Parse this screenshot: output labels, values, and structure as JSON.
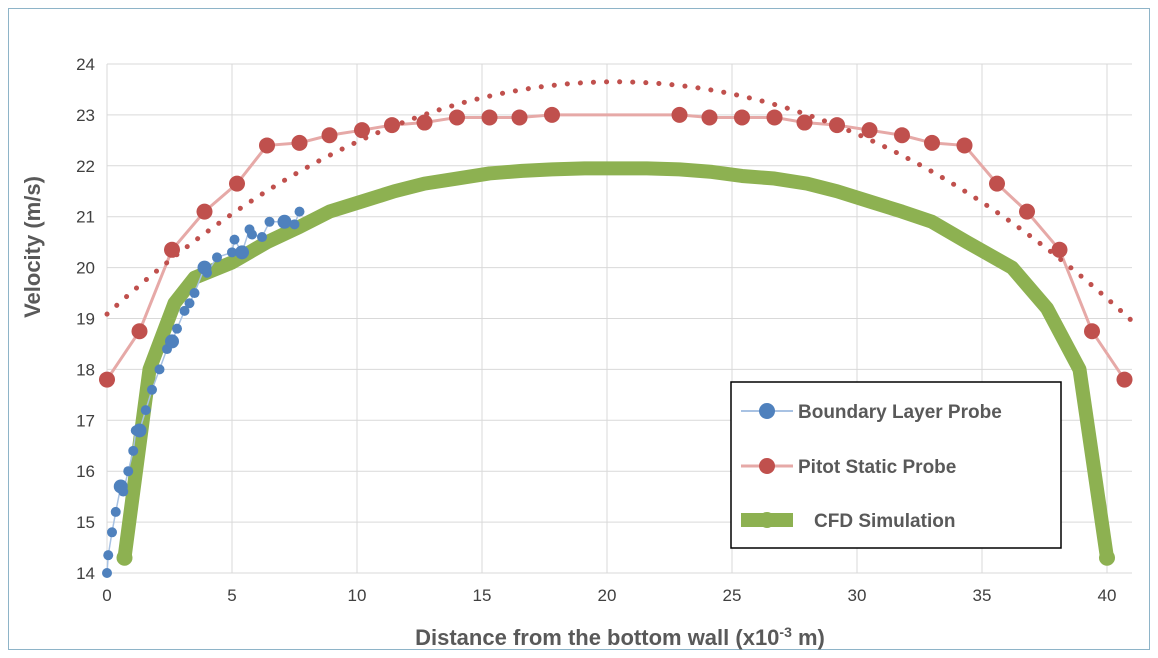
{
  "chart_data": {
    "type": "scatter",
    "xlabel": "Distance from the bottom wall (x10",
    "xlabel_sup": "-3",
    "xlabel_suffix": " m)",
    "ylabel": "Velocity (m/s)",
    "xlim": [
      0,
      41
    ],
    "ylim": [
      14,
      24
    ],
    "xticks": [
      0,
      5,
      10,
      15,
      20,
      25,
      30,
      35,
      40
    ],
    "yticks": [
      14,
      15,
      16,
      17,
      18,
      19,
      20,
      21,
      22,
      23,
      24
    ],
    "grid": true,
    "legend_position": "bottom-right",
    "colors": {
      "bl": "#4f81bd",
      "bl_line": "#a8c2e3",
      "pitot": "#c0504d",
      "pitot_line": "#e6a9a7",
      "cfd": "#8db151",
      "grid": "#d9d9d9",
      "frame": "#8eb4c8"
    },
    "series": [
      {
        "name": "Boundary Layer Probe",
        "key": "bl",
        "x": [
          0.0,
          0.05,
          0.2,
          0.35,
          0.55,
          0.65,
          0.85,
          1.05,
          1.15,
          1.3,
          1.55,
          1.8,
          2.1,
          2.4,
          2.6,
          2.8,
          3.1,
          3.3,
          3.5,
          3.9,
          4.0,
          4.4,
          5.0,
          5.1,
          5.4,
          5.7,
          5.8,
          6.2,
          6.5,
          7.1,
          7.5,
          7.7
        ],
        "y": [
          14.0,
          14.35,
          14.8,
          15.2,
          15.7,
          15.6,
          16.0,
          16.4,
          16.8,
          16.8,
          17.2,
          17.6,
          18.0,
          18.4,
          18.55,
          18.8,
          19.15,
          19.3,
          19.5,
          20.0,
          19.9,
          20.2,
          20.3,
          20.55,
          20.3,
          20.75,
          20.65,
          20.6,
          20.9,
          20.9,
          20.85,
          21.1
        ]
      },
      {
        "name": "Pitot Static Probe",
        "key": "pitot",
        "x": [
          0.0,
          1.3,
          2.6,
          3.9,
          5.2,
          6.4,
          7.7,
          8.9,
          10.2,
          11.4,
          12.7,
          14.0,
          15.3,
          16.5,
          17.8,
          22.9,
          24.1,
          25.4,
          26.7,
          27.9,
          29.2,
          30.5,
          31.8,
          33.0,
          34.3,
          35.6,
          36.8,
          38.1,
          39.4,
          40.7
        ],
        "y": [
          17.8,
          18.75,
          20.35,
          21.1,
          21.65,
          22.4,
          22.45,
          22.6,
          22.7,
          22.8,
          22.85,
          22.95,
          22.95,
          22.95,
          23.0,
          23.0,
          22.95,
          22.95,
          22.95,
          22.85,
          22.8,
          22.7,
          22.6,
          22.45,
          22.4,
          21.65,
          21.1,
          20.35,
          18.75,
          17.8
        ]
      },
      {
        "name": "CFD Simulation",
        "key": "cfd",
        "x": [
          0.7,
          1.7,
          2.7,
          3.5,
          5.0,
          6.4,
          7.7,
          8.9,
          10.2,
          11.5,
          12.7,
          14.0,
          15.3,
          16.6,
          17.8,
          19.1,
          20.4,
          21.6,
          22.9,
          24.2,
          25.4,
          26.7,
          28.0,
          29.2,
          30.5,
          31.8,
          33.0,
          34.4,
          36.2,
          37.6,
          38.9,
          40.0
        ],
        "y": [
          14.3,
          18.0,
          19.3,
          19.8,
          20.1,
          20.5,
          20.8,
          21.1,
          21.3,
          21.5,
          21.65,
          21.75,
          21.85,
          21.9,
          21.93,
          21.95,
          21.95,
          21.95,
          21.93,
          21.88,
          21.8,
          21.75,
          21.65,
          21.5,
          21.3,
          21.1,
          20.9,
          20.5,
          20.0,
          19.2,
          18.0,
          14.3
        ]
      }
    ],
    "trendline": {
      "series": "Pitot Static Probe",
      "style": "dotted",
      "x_start": 0.0,
      "x_end": 41.0,
      "vertex_x": 20.35,
      "vertex_y": 23.65,
      "end_y": 18.95
    }
  }
}
